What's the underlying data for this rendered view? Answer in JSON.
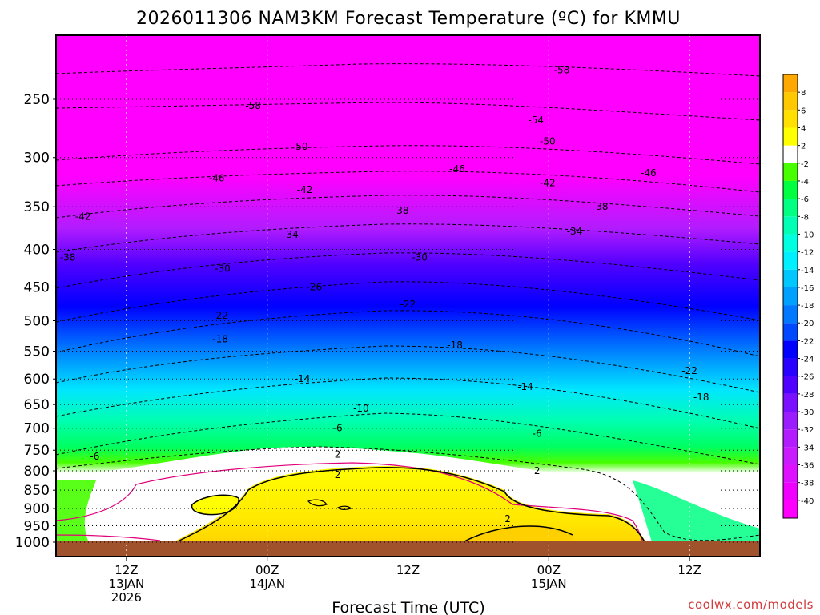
{
  "chart_data": {
    "type": "heatmap",
    "title": "2026011306 NAM3KM Forecast Temperature (ºC) for KMMU",
    "xlabel": "Forecast Time (UTC)",
    "ylabel": "",
    "y_scale": "log-pressure",
    "ylim": [
      1050,
      200
    ],
    "y_ticks": [
      250,
      300,
      350,
      400,
      450,
      500,
      550,
      600,
      650,
      700,
      750,
      800,
      850,
      900,
      950,
      1000
    ],
    "x_ticks": [
      {
        "hour": 6,
        "lines": [
          "12Z",
          "13JAN",
          "2026"
        ]
      },
      {
        "hour": 18,
        "lines": [
          "00Z",
          "14JAN"
        ]
      },
      {
        "hour": 30,
        "lines": [
          "12Z"
        ]
      },
      {
        "hour": 42,
        "lines": [
          "00Z",
          "15JAN"
        ]
      },
      {
        "hour": 54,
        "lines": [
          "12Z"
        ]
      }
    ],
    "xlim": [
      0,
      60
    ],
    "grid": true,
    "colorbar": {
      "levels": [
        -40,
        -38,
        -36,
        -34,
        -32,
        -30,
        -28,
        -26,
        -24,
        -22,
        -20,
        -18,
        -16,
        -14,
        -12,
        -10,
        -8,
        -6,
        -4,
        -2,
        2,
        4,
        6,
        8
      ],
      "colors": [
        "#ff00ff",
        "#f000ff",
        "#dd10ff",
        "#c81cff",
        "#b21cff",
        "#9a1cff",
        "#7a10ff",
        "#5000ff",
        "#2a00ff",
        "#0000ff",
        "#0048ff",
        "#0078ff",
        "#00a0ff",
        "#00c8ff",
        "#00f0ff",
        "#00ffe0",
        "#00ffb4",
        "#00ff82",
        "#00ff40",
        "#48ff00",
        "#ffffff",
        "#ffff00",
        "#ffe000",
        "#ffc800",
        "#ffa800"
      ]
    },
    "contour_labels": [
      {
        "value": "-58",
        "hour": 16.8,
        "p": 255
      },
      {
        "value": "-58",
        "hour": 43.1,
        "p": 228
      },
      {
        "value": "-54",
        "hour": 40.9,
        "p": 267
      },
      {
        "value": "-50",
        "hour": 20.8,
        "p": 290
      },
      {
        "value": "-50",
        "hour": 41.9,
        "p": 285
      },
      {
        "value": "-46",
        "hour": 13.7,
        "p": 320
      },
      {
        "value": "-46",
        "hour": 34.2,
        "p": 311
      },
      {
        "value": "-46",
        "hour": 50.5,
        "p": 315
      },
      {
        "value": "-42",
        "hour": 2.3,
        "p": 361
      },
      {
        "value": "-42",
        "hour": 21.2,
        "p": 332
      },
      {
        "value": "-42",
        "hour": 41.9,
        "p": 325
      },
      {
        "value": "-38",
        "hour": 1.0,
        "p": 410
      },
      {
        "value": "-38",
        "hour": 29.4,
        "p": 354
      },
      {
        "value": "-38",
        "hour": 46.4,
        "p": 350
      },
      {
        "value": "-34",
        "hour": 20.0,
        "p": 382
      },
      {
        "value": "-34",
        "hour": 44.2,
        "p": 378
      },
      {
        "value": "-30",
        "hour": 14.2,
        "p": 425
      },
      {
        "value": "-30",
        "hour": 31.0,
        "p": 410
      },
      {
        "value": "-26",
        "hour": 22.0,
        "p": 450
      },
      {
        "value": "-22",
        "hour": 14.0,
        "p": 492
      },
      {
        "value": "-22",
        "hour": 30.0,
        "p": 475
      },
      {
        "value": "-22",
        "hour": 54.0,
        "p": 585
      },
      {
        "value": "-18",
        "hour": 14.0,
        "p": 530
      },
      {
        "value": "-18",
        "hour": 34.0,
        "p": 540
      },
      {
        "value": "-18",
        "hour": 55.0,
        "p": 635
      },
      {
        "value": "-14",
        "hour": 21.0,
        "p": 600
      },
      {
        "value": "-14",
        "hour": 40.0,
        "p": 615
      },
      {
        "value": "-10",
        "hour": 26.0,
        "p": 658
      },
      {
        "value": "-6",
        "hour": 3.3,
        "p": 765
      },
      {
        "value": "-6",
        "hour": 24.0,
        "p": 700
      },
      {
        "value": "-6",
        "hour": 41.0,
        "p": 712
      },
      {
        "value": "2",
        "hour": 24.0,
        "p": 760
      },
      {
        "value": "2",
        "hour": 24.0,
        "p": 810
      },
      {
        "value": "2",
        "hour": 41.0,
        "p": 800
      },
      {
        "value": "2",
        "hour": 38.5,
        "p": 930
      }
    ]
  },
  "credit": "coolwx.com/models"
}
